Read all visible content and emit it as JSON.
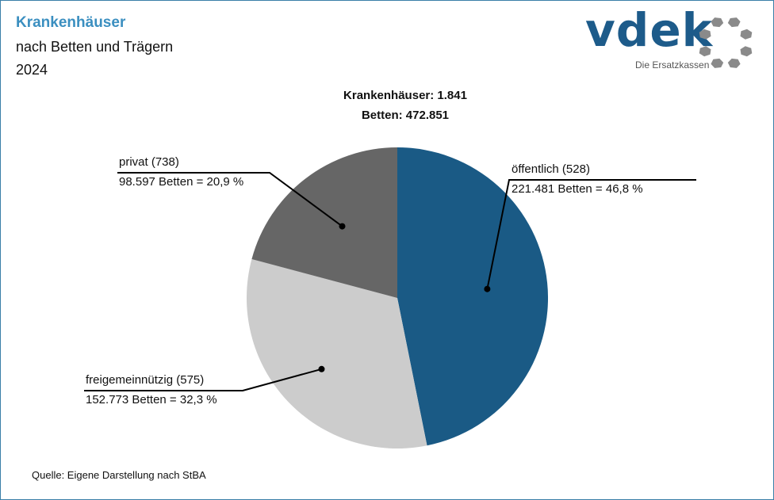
{
  "header": {
    "title": "Krankenhäuser",
    "subtitle": "nach Betten und Trägern",
    "year": "2024"
  },
  "logo": {
    "wordmark": "vdek",
    "tagline": "Die Ersatzkassen",
    "icon": "ring-of-hexagons-icon"
  },
  "summary": {
    "hospitals": "Krankenhäuser:  1.841",
    "beds": "Betten: 472.851"
  },
  "source": "Quelle: Eigene Darstellung nach StBA",
  "chart_data": {
    "type": "pie",
    "title": "Krankenhäuser nach Betten und Trägern 2024",
    "total_hospitals": 1841,
    "total_beds": 472851,
    "start_angle": "12 o'clock, clockwise",
    "slices": [
      {
        "name": "öffentlich",
        "hospitals": 528,
        "beds": 221481,
        "percent": 46.8,
        "color": "#1a5a85",
        "label_top": "öffentlich (528)",
        "label_bottom": "221.481  Betten = 46,8  %"
      },
      {
        "name": "freigemeinnützig",
        "hospitals": 575,
        "beds": 152773,
        "percent": 32.3,
        "color": "#cccccc",
        "label_top": "freigemeinnützig  (575)",
        "label_bottom": "152.773  Betten = 32,3  %"
      },
      {
        "name": "privat",
        "hospitals": 738,
        "beds": 98597,
        "percent": 20.9,
        "color": "#666666",
        "label_top": "privat (738)",
        "label_bottom": "98.597  Betten = 20,9  %"
      }
    ]
  }
}
